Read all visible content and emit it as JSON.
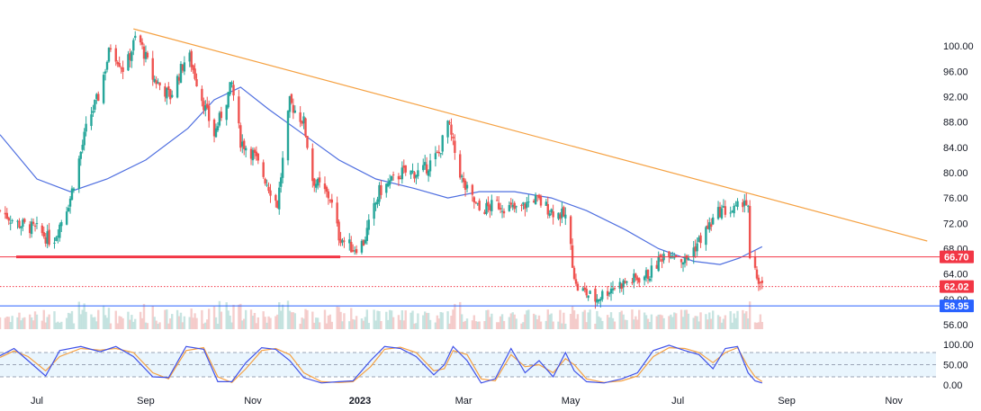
{
  "colors": {
    "up": "#26a69a",
    "down": "#ef5350",
    "trendline": "#f5a142",
    "ma": "#4f6fe0",
    "support": "#f23645",
    "level_blue": "#2962ff",
    "stoch_k": "#3f51e8",
    "stoch_d": "#f5a142",
    "stoch_band": "#e3f2fd",
    "axis_text": "#131722"
  },
  "chart_data": [
    {
      "type": "candlestick",
      "title": "",
      "y_axis_position": "right",
      "ylim": [
        55,
        103
      ],
      "y_ticks": [
        "56.00",
        "60.00",
        "64.00",
        "68.00",
        "72.00",
        "76.00",
        "80.00",
        "84.00",
        "88.00",
        "92.00",
        "96.00",
        "100.00"
      ],
      "x_ticks": [
        {
          "label": "Jul",
          "date": "2022-07-01",
          "bold": false
        },
        {
          "label": "Sep",
          "date": "2022-09-01",
          "bold": false
        },
        {
          "label": "Nov",
          "date": "2022-11-01",
          "bold": false
        },
        {
          "label": "2023",
          "date": "2023-01-01",
          "bold": true
        },
        {
          "label": "Mar",
          "date": "2023-03-01",
          "bold": false
        },
        {
          "label": "May",
          "date": "2023-05-01",
          "bold": false
        },
        {
          "label": "Jul",
          "date": "2023-07-01",
          "bold": false
        },
        {
          "label": "Sep",
          "date": "2023-09-01",
          "bold": false
        },
        {
          "label": "Nov",
          "date": "2023-11-01",
          "bold": false
        }
      ],
      "x_range": [
        "2022-06-10",
        "2023-11-25"
      ],
      "price_keypoints": [
        [
          "2022-06-10",
          74
        ],
        [
          "2022-06-20",
          72
        ],
        [
          "2022-07-01",
          71
        ],
        [
          "2022-07-10",
          69
        ],
        [
          "2022-07-20",
          76
        ],
        [
          "2022-07-30",
          88
        ],
        [
          "2022-08-05",
          92
        ],
        [
          "2022-08-12",
          100
        ],
        [
          "2022-08-20",
          96
        ],
        [
          "2022-08-27",
          102
        ],
        [
          "2022-09-05",
          95
        ],
        [
          "2022-09-15",
          92
        ],
        [
          "2022-09-25",
          99
        ],
        [
          "2022-10-05",
          90
        ],
        [
          "2022-10-10",
          86
        ],
        [
          "2022-10-20",
          94
        ],
        [
          "2022-10-25",
          85
        ],
        [
          "2022-11-01",
          83
        ],
        [
          "2022-11-08",
          79
        ],
        [
          "2022-11-15",
          75
        ],
        [
          "2022-11-22",
          91
        ],
        [
          "2022-11-30",
          88
        ],
        [
          "2022-12-05",
          79
        ],
        [
          "2022-12-15",
          76
        ],
        [
          "2022-12-20",
          70
        ],
        [
          "2022-12-28",
          68
        ],
        [
          "2023-01-03",
          69
        ],
        [
          "2023-01-12",
          77
        ],
        [
          "2023-01-25",
          80
        ],
        [
          "2023-02-05",
          80
        ],
        [
          "2023-02-15",
          83
        ],
        [
          "2023-02-20",
          88
        ],
        [
          "2023-02-25",
          82
        ],
        [
          "2023-03-01",
          78
        ],
        [
          "2023-03-10",
          74
        ],
        [
          "2023-03-20",
          75
        ],
        [
          "2023-04-01",
          74
        ],
        [
          "2023-04-10",
          76
        ],
        [
          "2023-04-20",
          74
        ],
        [
          "2023-04-28",
          73
        ],
        [
          "2023-05-01",
          68
        ],
        [
          "2023-05-04",
          62
        ],
        [
          "2023-05-15",
          60
        ],
        [
          "2023-05-25",
          62
        ],
        [
          "2023-06-05",
          63
        ],
        [
          "2023-06-15",
          64
        ],
        [
          "2023-06-25",
          68
        ],
        [
          "2023-07-05",
          66
        ],
        [
          "2023-07-15",
          70
        ],
        [
          "2023-07-25",
          74
        ],
        [
          "2023-08-03",
          74
        ],
        [
          "2023-08-08",
          76
        ],
        [
          "2023-08-10",
          74
        ],
        [
          "2023-08-11",
          66
        ],
        [
          "2023-08-14",
          64
        ],
        [
          "2023-08-18",
          62
        ]
      ],
      "moving_average": [
        [
          "2022-06-10",
          86
        ],
        [
          "2022-07-01",
          79
        ],
        [
          "2022-07-20",
          77
        ],
        [
          "2022-08-10",
          79
        ],
        [
          "2022-09-01",
          82
        ],
        [
          "2022-09-25",
          87
        ],
        [
          "2022-10-10",
          91.5
        ],
        [
          "2022-10-25",
          93.5
        ],
        [
          "2022-11-10",
          90
        ],
        [
          "2022-11-30",
          86
        ],
        [
          "2022-12-20",
          82
        ],
        [
          "2023-01-10",
          79
        ],
        [
          "2023-02-01",
          77.5
        ],
        [
          "2023-02-20",
          76
        ],
        [
          "2023-03-10",
          77
        ],
        [
          "2023-03-30",
          77
        ],
        [
          "2023-04-20",
          76
        ],
        [
          "2023-05-10",
          74
        ],
        [
          "2023-06-01",
          71
        ],
        [
          "2023-06-20",
          68
        ],
        [
          "2023-07-10",
          66
        ],
        [
          "2023-07-25",
          65.5
        ],
        [
          "2023-08-05",
          66.5
        ],
        [
          "2023-08-18",
          68.3
        ]
      ],
      "trendline": {
        "start": [
          "2022-08-25",
          102.7
        ],
        "end": [
          "2023-11-20",
          69.2
        ]
      },
      "support_line": {
        "start": [
          "2022-06-10",
          66.7
        ],
        "end": [
          "2022-12-31",
          66.7
        ]
      },
      "levels": [
        {
          "value": 66.7,
          "label": "66.70",
          "style": "solid",
          "color": "#f23645"
        },
        {
          "value": 62.02,
          "label": "62.02",
          "style": "dotted",
          "color": "#f23645"
        },
        {
          "value": 58.95,
          "label": "58.95",
          "style": "solid",
          "color": "#2962ff"
        }
      ],
      "partially_covered_tick": "60.00"
    },
    {
      "type": "line",
      "title": "",
      "ylim": [
        0,
        100
      ],
      "y_ticks": [
        "0.00",
        "50.00",
        "100.00"
      ],
      "bands": {
        "upper": 80,
        "middle": 50,
        "lower": 20
      },
      "k_keypoints": [
        [
          "2022-06-10",
          72
        ],
        [
          "2022-06-18",
          90
        ],
        [
          "2022-06-26",
          60
        ],
        [
          "2022-07-06",
          22
        ],
        [
          "2022-07-14",
          85
        ],
        [
          "2022-07-26",
          95
        ],
        [
          "2022-08-06",
          82
        ],
        [
          "2022-08-15",
          95
        ],
        [
          "2022-08-25",
          70
        ],
        [
          "2022-09-05",
          20
        ],
        [
          "2022-09-14",
          18
        ],
        [
          "2022-09-24",
          95
        ],
        [
          "2022-10-04",
          88
        ],
        [
          "2022-10-12",
          8
        ],
        [
          "2022-10-20",
          8
        ],
        [
          "2022-10-28",
          55
        ],
        [
          "2022-11-06",
          92
        ],
        [
          "2022-11-14",
          88
        ],
        [
          "2022-11-22",
          60
        ],
        [
          "2022-11-30",
          18
        ],
        [
          "2022-12-10",
          5
        ],
        [
          "2022-12-20",
          8
        ],
        [
          "2022-12-28",
          10
        ],
        [
          "2023-01-07",
          60
        ],
        [
          "2023-01-15",
          95
        ],
        [
          "2023-01-24",
          90
        ],
        [
          "2023-02-02",
          70
        ],
        [
          "2023-02-12",
          25
        ],
        [
          "2023-02-18",
          50
        ],
        [
          "2023-02-23",
          95
        ],
        [
          "2023-03-03",
          60
        ],
        [
          "2023-03-11",
          5
        ],
        [
          "2023-03-19",
          15
        ],
        [
          "2023-03-28",
          90
        ],
        [
          "2023-04-05",
          30
        ],
        [
          "2023-04-13",
          60
        ],
        [
          "2023-04-21",
          20
        ],
        [
          "2023-04-28",
          80
        ],
        [
          "2023-05-03",
          35
        ],
        [
          "2023-05-10",
          8
        ],
        [
          "2023-05-20",
          5
        ],
        [
          "2023-05-30",
          15
        ],
        [
          "2023-06-08",
          30
        ],
        [
          "2023-06-17",
          85
        ],
        [
          "2023-06-26",
          98
        ],
        [
          "2023-07-05",
          85
        ],
        [
          "2023-07-13",
          75
        ],
        [
          "2023-07-21",
          40
        ],
        [
          "2023-07-28",
          90
        ],
        [
          "2023-08-04",
          95
        ],
        [
          "2023-08-10",
          30
        ],
        [
          "2023-08-14",
          10
        ],
        [
          "2023-08-18",
          5
        ]
      ],
      "d_keypoints": [
        [
          "2022-06-10",
          68
        ],
        [
          "2022-06-18",
          84
        ],
        [
          "2022-06-26",
          70
        ],
        [
          "2022-07-06",
          35
        ],
        [
          "2022-07-14",
          70
        ],
        [
          "2022-07-26",
          90
        ],
        [
          "2022-08-06",
          86
        ],
        [
          "2022-08-15",
          90
        ],
        [
          "2022-08-25",
          80
        ],
        [
          "2022-09-05",
          30
        ],
        [
          "2022-09-14",
          15
        ],
        [
          "2022-09-24",
          85
        ],
        [
          "2022-10-04",
          92
        ],
        [
          "2022-10-12",
          20
        ],
        [
          "2022-10-20",
          6
        ],
        [
          "2022-10-28",
          40
        ],
        [
          "2022-11-06",
          85
        ],
        [
          "2022-11-14",
          90
        ],
        [
          "2022-11-22",
          75
        ],
        [
          "2022-11-30",
          30
        ],
        [
          "2022-12-10",
          8
        ],
        [
          "2022-12-20",
          6
        ],
        [
          "2022-12-28",
          8
        ],
        [
          "2023-01-07",
          45
        ],
        [
          "2023-01-15",
          88
        ],
        [
          "2023-01-24",
          93
        ],
        [
          "2023-02-02",
          80
        ],
        [
          "2023-02-12",
          35
        ],
        [
          "2023-02-18",
          40
        ],
        [
          "2023-02-23",
          85
        ],
        [
          "2023-03-03",
          75
        ],
        [
          "2023-03-11",
          15
        ],
        [
          "2023-03-19",
          10
        ],
        [
          "2023-03-28",
          75
        ],
        [
          "2023-04-05",
          45
        ],
        [
          "2023-04-13",
          50
        ],
        [
          "2023-04-21",
          30
        ],
        [
          "2023-04-28",
          65
        ],
        [
          "2023-05-03",
          50
        ],
        [
          "2023-05-10",
          15
        ],
        [
          "2023-05-20",
          6
        ],
        [
          "2023-05-30",
          10
        ],
        [
          "2023-06-08",
          22
        ],
        [
          "2023-06-17",
          70
        ],
        [
          "2023-06-26",
          92
        ],
        [
          "2023-07-05",
          90
        ],
        [
          "2023-07-13",
          80
        ],
        [
          "2023-07-21",
          55
        ],
        [
          "2023-07-28",
          80
        ],
        [
          "2023-08-04",
          92
        ],
        [
          "2023-08-10",
          45
        ],
        [
          "2023-08-14",
          20
        ],
        [
          "2023-08-18",
          8
        ]
      ]
    }
  ]
}
